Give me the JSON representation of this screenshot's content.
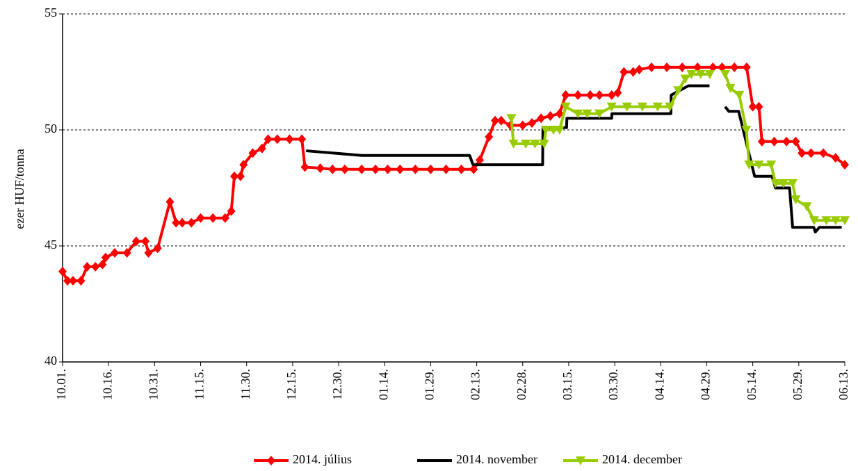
{
  "chart_data": {
    "type": "line",
    "y_label": "ezer HUF/tonna",
    "xlim": [
      0,
      255
    ],
    "xticks": [
      {
        "value": 0,
        "label": "10.01."
      },
      {
        "value": 15,
        "label": "10.16."
      },
      {
        "value": 30,
        "label": "10.31."
      },
      {
        "value": 45,
        "label": "11.15."
      },
      {
        "value": 60,
        "label": "11.30."
      },
      {
        "value": 75,
        "label": "12.15."
      },
      {
        "value": 90,
        "label": "12.30."
      },
      {
        "value": 105,
        "label": "01.14."
      },
      {
        "value": 120,
        "label": "01.29."
      },
      {
        "value": 135,
        "label": "02.13."
      },
      {
        "value": 150,
        "label": "02.28."
      },
      {
        "value": 165,
        "label": "03.15."
      },
      {
        "value": 180,
        "label": "03.30."
      },
      {
        "value": 195,
        "label": "04.14."
      },
      {
        "value": 210,
        "label": "04.29."
      },
      {
        "value": 225,
        "label": "05.14."
      },
      {
        "value": 240,
        "label": "05.29."
      },
      {
        "value": 255,
        "label": "06.13."
      }
    ],
    "ylim": [
      40,
      55
    ],
    "yticks": [
      40,
      45,
      50,
      55
    ],
    "grid": true,
    "legend": "bottom",
    "series": [
      {
        "name": "2014. július",
        "color": "#ff0000",
        "marker": "diamond",
        "x": [
          0,
          1.6,
          3.4,
          6,
          8,
          10.7,
          13,
          14,
          17,
          21,
          24,
          27,
          28,
          31,
          35,
          37,
          39,
          42,
          45,
          49,
          53,
          55,
          56,
          58,
          59,
          62,
          65,
          67,
          70,
          74,
          78,
          79,
          84,
          88,
          92,
          97.5,
          102,
          106,
          110,
          115,
          120,
          125,
          130,
          134,
          136,
          139,
          141,
          143,
          146,
          150,
          153,
          156,
          159,
          162,
          164,
          168,
          172,
          175,
          179,
          181,
          183,
          186,
          188,
          192,
          197,
          202,
          207,
          212,
          215,
          219,
          223,
          225,
          227,
          228,
          232,
          236,
          239,
          241,
          244,
          248,
          252,
          255
        ],
        "values": [
          43.9,
          43.5,
          43.5,
          43.5,
          44.1,
          44.1,
          44.2,
          44.5,
          44.7,
          44.7,
          45.2,
          45.2,
          44.7,
          44.9,
          46.9,
          46.0,
          46.0,
          46.0,
          46.2,
          46.2,
          46.2,
          46.5,
          48.0,
          48.0,
          48.5,
          49.0,
          49.2,
          49.6,
          49.6,
          49.6,
          49.6,
          48.4,
          48.35,
          48.3,
          48.3,
          48.3,
          48.3,
          48.3,
          48.3,
          48.3,
          48.3,
          48.3,
          48.3,
          48.3,
          48.7,
          49.7,
          50.4,
          50.4,
          50.2,
          50.2,
          50.3,
          50.5,
          50.6,
          50.7,
          51.5,
          51.5,
          51.5,
          51.5,
          51.5,
          51.6,
          52.5,
          52.5,
          52.6,
          52.7,
          52.7,
          52.7,
          52.7,
          52.7,
          52.7,
          52.7,
          52.7,
          51.0,
          51.0,
          49.5,
          49.5,
          49.5,
          49.5,
          49.0,
          49.0,
          49.0,
          48.8,
          48.5
        ]
      },
      {
        "name": "2014. november",
        "color": "#000000",
        "marker": "none",
        "x": [
          79.4,
          97.5,
          132.7,
          133.8,
          156.5,
          156.6,
          164.3,
          164.4,
          174.6,
          179,
          179.1,
          198.3,
          198.4,
          204,
          210.9,
          null,
          216,
          217.2,
          220.4,
          225.6,
          231.3,
          232.4,
          237,
          238,
          244.9,
          245.4,
          246.7,
          254
        ],
        "values": [
          49.1,
          48.9,
          48.9,
          48.5,
          48.5,
          50.1,
          50.1,
          50.5,
          50.5,
          50.5,
          50.7,
          50.7,
          51.5,
          51.9,
          51.9,
          null,
          51.0,
          50.8,
          50.8,
          48.0,
          48.0,
          47.5,
          47.5,
          45.8,
          45.8,
          45.6,
          45.8,
          45.8
        ]
      },
      {
        "name": "2014. december",
        "color": "#99cc00",
        "marker": "triangle-down",
        "x": [
          146.3,
          147,
          151,
          154,
          157,
          157.5,
          160,
          162,
          164,
          168,
          171,
          175,
          179,
          184,
          189,
          194,
          198,
          200.7,
          203,
          205,
          208,
          211,
          null,
          216,
          217.7,
          220.6,
          222.9,
          223.8,
          227,
          231,
          232.4,
          235,
          238,
          239,
          242.6,
          245,
          249,
          252,
          255
        ],
        "values": [
          50.5,
          49.4,
          49.4,
          49.4,
          49.4,
          50.0,
          50.0,
          50.0,
          51.0,
          50.7,
          50.7,
          50.7,
          51.0,
          51.0,
          51.0,
          51.0,
          51.0,
          51.7,
          52.2,
          52.4,
          52.4,
          52.4,
          null,
          52.4,
          51.8,
          51.5,
          50.0,
          48.5,
          48.5,
          48.5,
          47.7,
          47.7,
          47.7,
          47.0,
          46.7,
          46.1,
          46.1,
          46.1,
          46.1
        ]
      }
    ]
  }
}
